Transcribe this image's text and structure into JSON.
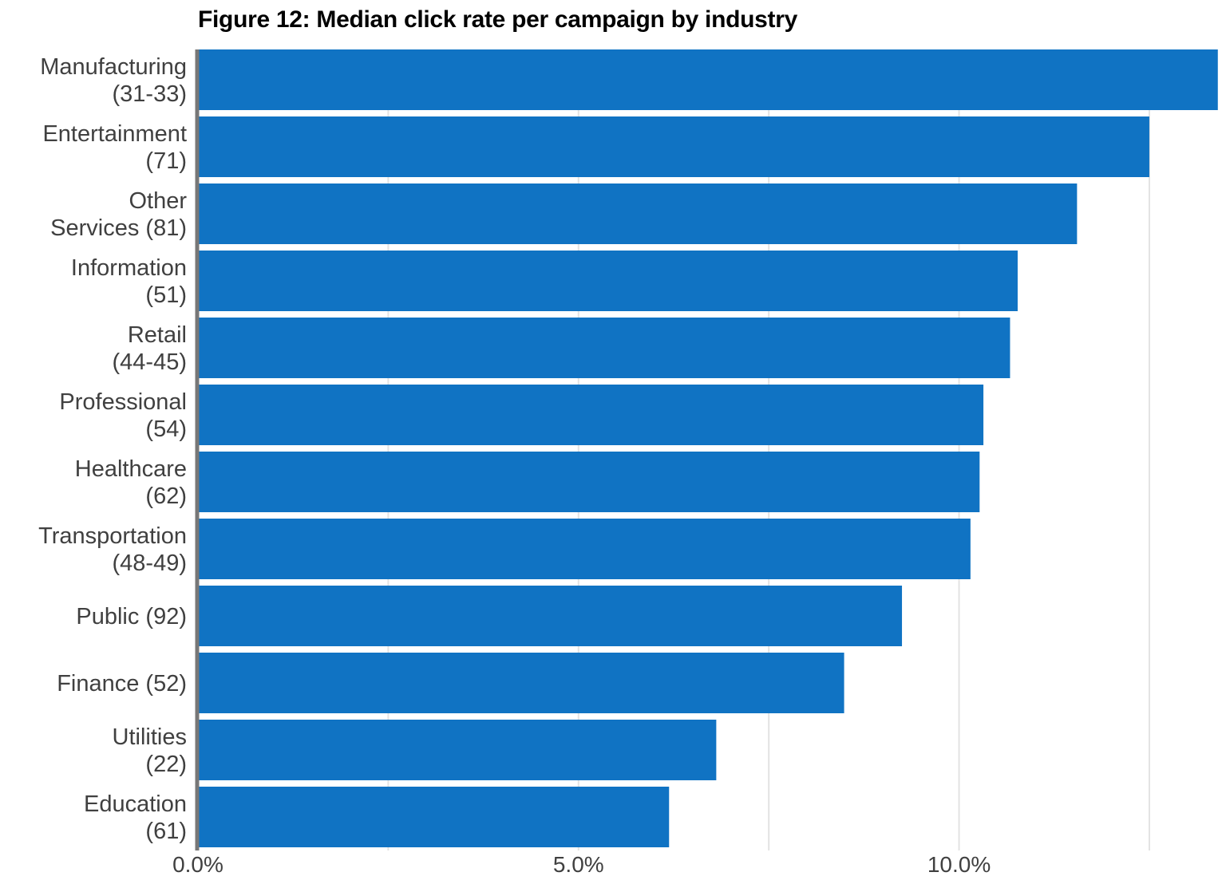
{
  "chart_data": {
    "type": "bar",
    "orientation": "horizontal",
    "title": "Figure 12: Median click rate per campaign by industry",
    "xlabel": "",
    "ylabel": "",
    "categories": [
      [
        "Manufacturing",
        "(31-33)"
      ],
      [
        "Entertainment",
        "(71)"
      ],
      [
        "Other",
        "Services (81)"
      ],
      [
        "Information",
        "(51)"
      ],
      [
        "Retail",
        "(44-45)"
      ],
      [
        "Professional",
        "(54)"
      ],
      [
        "Healthcare",
        "(62)"
      ],
      [
        "Transportation",
        "(48-49)"
      ],
      [
        "Public (92)"
      ],
      [
        "Finance (52)"
      ],
      [
        "Utilities",
        "(22)"
      ],
      [
        "Education",
        "(61)"
      ]
    ],
    "values": [
      13.4,
      12.5,
      11.55,
      10.77,
      10.67,
      10.32,
      10.27,
      10.15,
      9.25,
      8.49,
      6.81,
      6.19
    ],
    "value_unit": "%",
    "xlim": [
      0,
      13.35
    ],
    "xticks": [
      0,
      5,
      10
    ],
    "xtick_labels": [
      "0.0%",
      "5.0%",
      "10.0%"
    ],
    "gridlines": [
      2.5,
      5,
      7.5,
      10,
      12.5
    ],
    "grid": true,
    "bar_color": "#1073c3",
    "grid_color": "#e3e3e3",
    "axis_color": "#777777",
    "label_color": "#404040"
  }
}
